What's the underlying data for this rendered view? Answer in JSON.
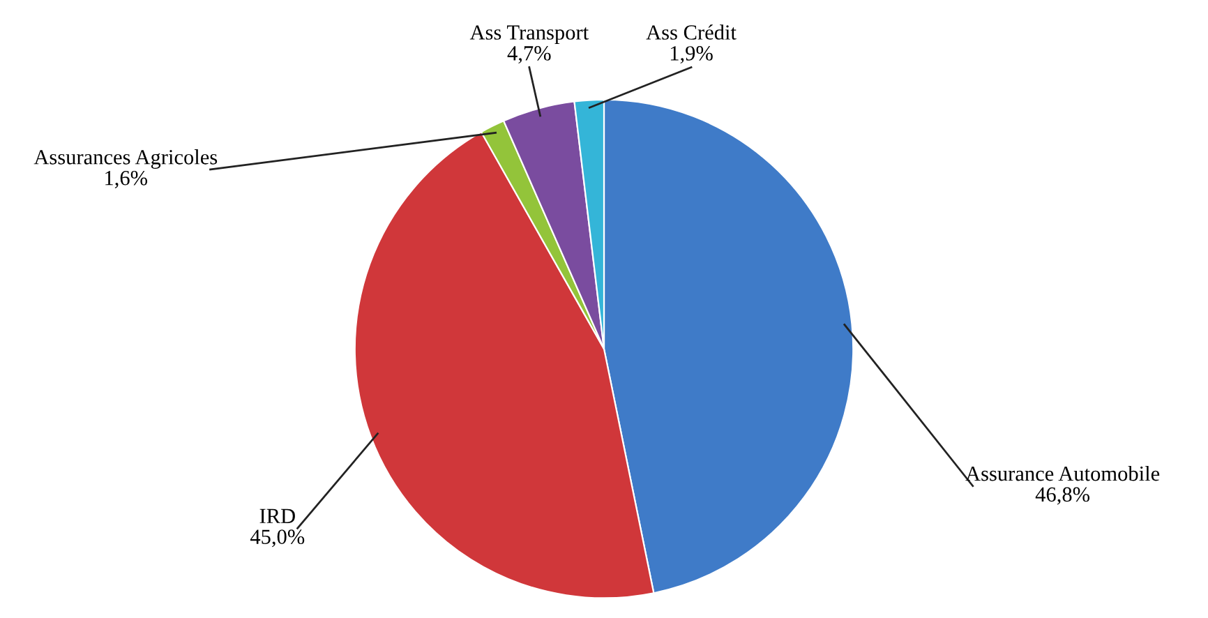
{
  "chart_data": {
    "type": "pie",
    "categories": [
      "Assurance Automobile",
      "IRD",
      "Assurances Agricoles",
      "Ass Transport",
      "Ass Crédit"
    ],
    "values": [
      46.8,
      45.0,
      1.6,
      4.7,
      1.9
    ],
    "value_labels": [
      "46,8%",
      "45,0%",
      "1,6%",
      "4,7%",
      "1,9%"
    ],
    "colors": [
      "#3f7bc8",
      "#d0373a",
      "#93c43a",
      "#7a4c9f",
      "#34b5d8"
    ],
    "legend": false
  }
}
